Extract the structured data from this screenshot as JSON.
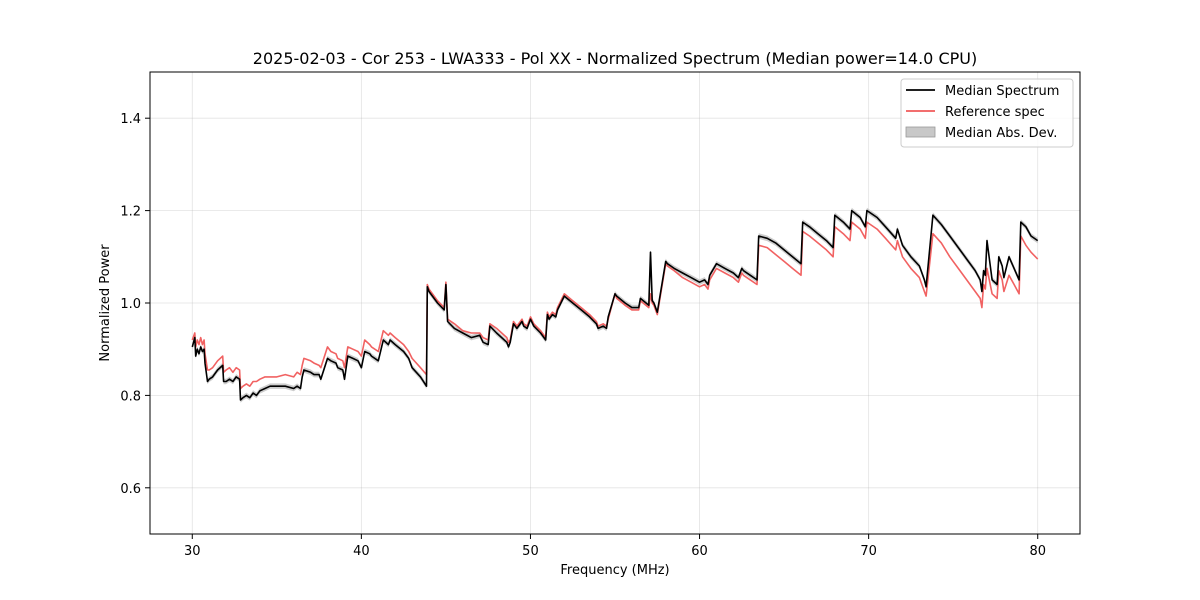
{
  "chart_data": {
    "type": "line",
    "title": "2025-02-03 - Cor 253 - LWA333 - Pol XX - Normalized Spectrum (Median power=14.0 CPU)",
    "xlabel": "Frequency (MHz)",
    "ylabel": "Normalized Power",
    "xlim": [
      27.5,
      82.5
    ],
    "ylim": [
      0.5,
      1.5
    ],
    "xticks": [
      30,
      40,
      50,
      60,
      70,
      80
    ],
    "yticks": [
      0.6,
      0.8,
      1.0,
      1.2,
      1.4
    ],
    "xtick_labels": [
      "30",
      "40",
      "50",
      "60",
      "70",
      "80"
    ],
    "ytick_labels": [
      "0.6",
      "0.8",
      "1.0",
      "1.2",
      "1.4"
    ],
    "grid": true,
    "legend_position": "upper right",
    "legend": [
      {
        "label": "Median Spectrum",
        "kind": "line",
        "color": "#000000"
      },
      {
        "label": "Reference spec",
        "kind": "line",
        "color": "#f05a5a"
      },
      {
        "label": "Median Abs. Dev.",
        "kind": "patch",
        "color": "#c8c8c8"
      }
    ],
    "series": [
      {
        "name": "Median Spectrum",
        "color": "#000000",
        "x": [
          30.0,
          30.15,
          30.2,
          30.3,
          30.4,
          30.5,
          30.6,
          30.7,
          30.75,
          30.9,
          31.0,
          31.2,
          31.5,
          31.8,
          31.85,
          32.0,
          32.2,
          32.4,
          32.6,
          32.8,
          32.85,
          33.0,
          33.2,
          33.4,
          33.6,
          33.8,
          34.0,
          34.3,
          34.6,
          35.0,
          35.5,
          36.0,
          36.2,
          36.4,
          36.5,
          36.6,
          37.0,
          37.2,
          37.5,
          37.6,
          38.0,
          38.2,
          38.5,
          38.6,
          38.9,
          39.0,
          39.2,
          39.5,
          39.8,
          40.0,
          40.2,
          40.5,
          40.6,
          41.0,
          41.3,
          41.6,
          41.7,
          42.0,
          42.5,
          42.8,
          43.0,
          43.5,
          43.85,
          43.9,
          44.0,
          44.5,
          44.9,
          45.0,
          45.1,
          45.5,
          46.0,
          46.5,
          47.0,
          47.2,
          47.5,
          47.6,
          48.0,
          48.3,
          48.6,
          48.7,
          48.8,
          49.0,
          49.2,
          49.5,
          49.6,
          49.8,
          50.0,
          50.2,
          50.6,
          50.9,
          51.0,
          51.1,
          51.3,
          51.5,
          51.6,
          52.0,
          52.5,
          53.0,
          53.5,
          53.9,
          54.0,
          54.3,
          54.5,
          54.6,
          55.0,
          55.1,
          55.6,
          56.0,
          56.4,
          56.5,
          57.0,
          57.1,
          57.2,
          57.3,
          57.5,
          58.0,
          58.1,
          58.5,
          59.0,
          59.5,
          60.0,
          60.3,
          60.5,
          60.6,
          61.0,
          61.5,
          62.0,
          62.3,
          62.5,
          62.6,
          63.0,
          63.4,
          63.5,
          64.0,
          64.5,
          65.0,
          65.5,
          66.0,
          66.1,
          66.5,
          67.0,
          67.5,
          67.9,
          68.0,
          68.5,
          68.9,
          69.0,
          69.5,
          69.8,
          69.9,
          70.5,
          71.0,
          71.6,
          71.7,
          72.0,
          72.5,
          73.0,
          73.3,
          73.4,
          73.8,
          74.3,
          74.8,
          75.3,
          75.8,
          76.3,
          76.6,
          76.7,
          76.8,
          76.9,
          77.0,
          77.3,
          77.6,
          77.7,
          77.9,
          78.0,
          78.3,
          78.6,
          78.9,
          79.0,
          79.3,
          79.6,
          80.0
        ],
        "y": [
          0.905,
          0.925,
          0.885,
          0.9,
          0.89,
          0.905,
          0.895,
          0.9,
          0.87,
          0.83,
          0.835,
          0.84,
          0.855,
          0.865,
          0.83,
          0.83,
          0.835,
          0.83,
          0.84,
          0.835,
          0.79,
          0.795,
          0.8,
          0.795,
          0.805,
          0.8,
          0.81,
          0.815,
          0.82,
          0.82,
          0.82,
          0.815,
          0.82,
          0.815,
          0.84,
          0.855,
          0.85,
          0.845,
          0.845,
          0.835,
          0.88,
          0.875,
          0.87,
          0.86,
          0.855,
          0.835,
          0.885,
          0.88,
          0.875,
          0.86,
          0.895,
          0.89,
          0.885,
          0.875,
          0.92,
          0.91,
          0.92,
          0.91,
          0.895,
          0.88,
          0.86,
          0.84,
          0.82,
          1.035,
          1.025,
          1.0,
          0.985,
          1.04,
          0.96,
          0.945,
          0.935,
          0.925,
          0.93,
          0.915,
          0.91,
          0.95,
          0.935,
          0.925,
          0.915,
          0.905,
          0.915,
          0.955,
          0.945,
          0.96,
          0.95,
          0.945,
          0.965,
          0.95,
          0.935,
          0.92,
          0.975,
          0.965,
          0.975,
          0.97,
          0.985,
          1.015,
          1.0,
          0.985,
          0.97,
          0.955,
          0.945,
          0.95,
          0.945,
          0.97,
          1.02,
          1.015,
          1.0,
          0.99,
          0.99,
          1.01,
          0.995,
          1.11,
          1.005,
          1.0,
          0.98,
          1.09,
          1.085,
          1.075,
          1.065,
          1.055,
          1.045,
          1.05,
          1.04,
          1.06,
          1.085,
          1.075,
          1.065,
          1.055,
          1.075,
          1.07,
          1.06,
          1.05,
          1.145,
          1.14,
          1.13,
          1.115,
          1.1,
          1.085,
          1.175,
          1.165,
          1.15,
          1.135,
          1.12,
          1.19,
          1.175,
          1.16,
          1.2,
          1.185,
          1.165,
          1.2,
          1.185,
          1.165,
          1.14,
          1.16,
          1.125,
          1.1,
          1.08,
          1.05,
          1.035,
          1.19,
          1.17,
          1.145,
          1.12,
          1.095,
          1.07,
          1.05,
          1.025,
          1.07,
          1.06,
          1.135,
          1.05,
          1.04,
          1.1,
          1.08,
          1.055,
          1.1,
          1.075,
          1.05,
          1.175,
          1.165,
          1.145,
          1.135
        ]
      },
      {
        "name": "Reference spec",
        "color": "#f05a5a",
        "x": [
          30.0,
          30.15,
          30.2,
          30.3,
          30.4,
          30.5,
          30.6,
          30.7,
          30.75,
          30.9,
          31.0,
          31.2,
          31.5,
          31.8,
          31.85,
          32.0,
          32.2,
          32.4,
          32.6,
          32.8,
          32.85,
          33.0,
          33.2,
          33.4,
          33.6,
          33.8,
          34.0,
          34.3,
          34.6,
          35.0,
          35.5,
          36.0,
          36.2,
          36.4,
          36.5,
          36.6,
          37.0,
          37.2,
          37.5,
          37.6,
          38.0,
          38.2,
          38.5,
          38.6,
          38.9,
          39.0,
          39.2,
          39.5,
          39.8,
          40.0,
          40.2,
          40.5,
          40.6,
          41.0,
          41.3,
          41.6,
          41.7,
          42.0,
          42.5,
          42.8,
          43.0,
          43.5,
          43.85,
          43.9,
          44.0,
          44.5,
          44.9,
          45.0,
          45.1,
          45.5,
          46.0,
          46.5,
          47.0,
          47.2,
          47.5,
          47.6,
          48.0,
          48.3,
          48.6,
          48.7,
          48.8,
          49.0,
          49.2,
          49.5,
          49.6,
          49.8,
          50.0,
          50.2,
          50.6,
          50.9,
          51.0,
          51.1,
          51.3,
          51.5,
          51.6,
          52.0,
          52.5,
          53.0,
          53.5,
          53.9,
          54.0,
          54.3,
          54.5,
          54.6,
          55.0,
          55.1,
          55.6,
          56.0,
          56.4,
          56.5,
          57.0,
          57.1,
          57.2,
          57.3,
          57.5,
          58.0,
          58.1,
          58.5,
          59.0,
          59.5,
          60.0,
          60.3,
          60.5,
          60.6,
          61.0,
          61.5,
          62.0,
          62.3,
          62.5,
          62.6,
          63.0,
          63.4,
          63.5,
          64.0,
          64.5,
          65.0,
          65.5,
          66.0,
          66.1,
          66.5,
          67.0,
          67.5,
          67.9,
          68.0,
          68.5,
          68.9,
          69.0,
          69.5,
          69.8,
          69.9,
          70.5,
          71.0,
          71.6,
          71.7,
          72.0,
          72.5,
          73.0,
          73.3,
          73.4,
          73.8,
          74.3,
          74.8,
          75.3,
          75.8,
          76.3,
          76.6,
          76.7,
          76.8,
          76.9,
          77.0,
          77.3,
          77.6,
          77.7,
          77.9,
          78.0,
          78.3,
          78.6,
          78.9,
          79.0,
          79.3,
          79.6,
          80.0
        ],
        "y": [
          0.92,
          0.935,
          0.905,
          0.92,
          0.91,
          0.925,
          0.91,
          0.92,
          0.89,
          0.855,
          0.855,
          0.86,
          0.875,
          0.885,
          0.85,
          0.855,
          0.86,
          0.85,
          0.86,
          0.855,
          0.815,
          0.82,
          0.825,
          0.82,
          0.83,
          0.83,
          0.835,
          0.84,
          0.84,
          0.84,
          0.845,
          0.84,
          0.85,
          0.845,
          0.865,
          0.88,
          0.875,
          0.87,
          0.865,
          0.86,
          0.905,
          0.895,
          0.89,
          0.88,
          0.875,
          0.86,
          0.905,
          0.9,
          0.895,
          0.885,
          0.92,
          0.91,
          0.905,
          0.895,
          0.94,
          0.93,
          0.935,
          0.925,
          0.91,
          0.895,
          0.88,
          0.86,
          0.845,
          1.04,
          1.03,
          1.005,
          0.99,
          1.045,
          0.965,
          0.955,
          0.94,
          0.935,
          0.935,
          0.925,
          0.92,
          0.955,
          0.945,
          0.935,
          0.925,
          0.915,
          0.92,
          0.96,
          0.95,
          0.965,
          0.955,
          0.95,
          0.97,
          0.955,
          0.94,
          0.925,
          0.98,
          0.97,
          0.98,
          0.975,
          0.99,
          1.02,
          1.005,
          0.99,
          0.975,
          0.96,
          0.95,
          0.955,
          0.95,
          0.965,
          1.02,
          1.01,
          0.995,
          0.985,
          0.985,
          1.005,
          0.99,
          1.02,
          1.0,
          0.995,
          0.975,
          1.085,
          1.08,
          1.07,
          1.055,
          1.045,
          1.035,
          1.04,
          1.03,
          1.05,
          1.075,
          1.065,
          1.055,
          1.045,
          1.065,
          1.06,
          1.05,
          1.04,
          1.125,
          1.12,
          1.105,
          1.09,
          1.075,
          1.06,
          1.155,
          1.145,
          1.13,
          1.115,
          1.1,
          1.165,
          1.15,
          1.135,
          1.175,
          1.16,
          1.14,
          1.175,
          1.16,
          1.14,
          1.115,
          1.135,
          1.1,
          1.075,
          1.055,
          1.025,
          1.015,
          1.15,
          1.13,
          1.1,
          1.075,
          1.05,
          1.025,
          1.01,
          0.99,
          1.04,
          1.03,
          1.075,
          1.02,
          1.01,
          1.07,
          1.05,
          1.025,
          1.06,
          1.04,
          1.02,
          1.145,
          1.125,
          1.11,
          1.095
        ]
      }
    ],
    "mad_band": {
      "name": "Median Abs. Dev.",
      "color": "#c8c8c8",
      "half_width": 0.006
    }
  }
}
